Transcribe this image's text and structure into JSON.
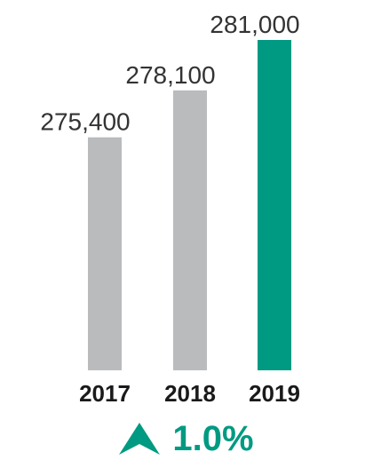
{
  "chart_data": {
    "type": "bar",
    "categories": [
      "2017",
      "2018",
      "2019"
    ],
    "values": [
      275400,
      278100,
      281000
    ],
    "value_labels": [
      "275,400",
      "278,100",
      "281,000"
    ],
    "title": "",
    "xlabel": "",
    "ylabel": "",
    "ylim": [
      0,
      290000
    ],
    "grid": false,
    "legend": "none",
    "colors": {
      "default_bar": "#b9bbbd",
      "highlight_bar": "#009a82",
      "highlight_category": "2019"
    }
  },
  "change": {
    "icon": "up-arrow-icon",
    "text": "1.0%",
    "color": "#009a82"
  }
}
